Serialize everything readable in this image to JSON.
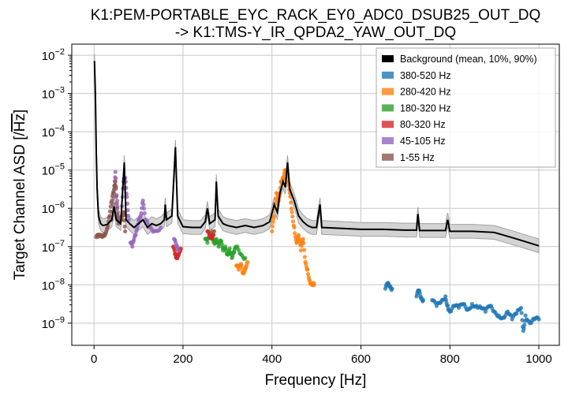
{
  "chart_data": {
    "type": "line",
    "title_line1": "K1:PEM-PORTABLE_EYC_RACK_EY0_ADC0_DSUB25_OUT_DQ",
    "title_line2": "-> K1:TMS-Y_IR_QPDA2_YAW_OUT_DQ",
    "xlabel": "Frequency [Hz]",
    "ylabel_prefix": "Target Channel ASD [/",
    "ylabel_sqrt": "Hz",
    "ylabel_suffix": "]",
    "xlim": [
      -50,
      1046
    ],
    "ylim_log10": [
      -9.58,
      -1.71
    ],
    "yscale": "log",
    "grid": true,
    "legend_placement": "top-right",
    "xticks": [
      0,
      200,
      400,
      600,
      800,
      1000
    ],
    "xtick_labels": [
      "0",
      "200",
      "400",
      "600",
      "800",
      "1000"
    ],
    "yticks_exp": [
      -2,
      -3,
      -4,
      -5,
      -6,
      -7,
      -8,
      -9
    ],
    "background": {
      "label": "Background (mean, 10%, 90%)",
      "color": "#000000",
      "band_color": "#d3d3d3",
      "percentile_spread_dex": 0.18,
      "mean_log10": [
        [
          1,
          -2.15
        ],
        [
          3,
          -3.0
        ],
        [
          5,
          -4.5
        ],
        [
          7,
          -5.5
        ],
        [
          10,
          -6.2
        ],
        [
          15,
          -6.4
        ],
        [
          20,
          -6.45
        ],
        [
          30,
          -6.42
        ],
        [
          40,
          -6.3
        ],
        [
          45,
          -5.95
        ],
        [
          50,
          -6.3
        ],
        [
          60,
          -6.4
        ],
        [
          68,
          -4.8
        ],
        [
          72,
          -6.3
        ],
        [
          80,
          -6.4
        ],
        [
          90,
          -6.5
        ],
        [
          100,
          -6.4
        ],
        [
          110,
          -6.3
        ],
        [
          120,
          -6.5
        ],
        [
          130,
          -6.4
        ],
        [
          140,
          -6.45
        ],
        [
          150,
          -6.4
        ],
        [
          158,
          -6.3
        ],
        [
          160,
          -5.9
        ],
        [
          163,
          -6.3
        ],
        [
          175,
          -6.2
        ],
        [
          183,
          -4.4
        ],
        [
          188,
          -6.2
        ],
        [
          200,
          -6.48
        ],
        [
          220,
          -6.5
        ],
        [
          240,
          -6.5
        ],
        [
          250,
          -6.35
        ],
        [
          255,
          -6.0
        ],
        [
          260,
          -6.4
        ],
        [
          272,
          -6.3
        ],
        [
          275,
          -5.3
        ],
        [
          279,
          -6.2
        ],
        [
          290,
          -6.4
        ],
        [
          300,
          -6.45
        ],
        [
          320,
          -6.5
        ],
        [
          340,
          -6.45
        ],
        [
          360,
          -6.5
        ],
        [
          380,
          -6.45
        ],
        [
          395,
          -6.35
        ],
        [
          405,
          -5.9
        ],
        [
          412,
          -6.1
        ],
        [
          418,
          -5.6
        ],
        [
          425,
          -5.3
        ],
        [
          430,
          -5.45
        ],
        [
          435,
          -4.8
        ],
        [
          440,
          -5.5
        ],
        [
          450,
          -5.8
        ],
        [
          460,
          -6.2
        ],
        [
          470,
          -6.35
        ],
        [
          480,
          -6.45
        ],
        [
          490,
          -6.5
        ],
        [
          500,
          -6.5
        ],
        [
          508,
          -5.9
        ],
        [
          512,
          -6.5
        ],
        [
          550,
          -6.52
        ],
        [
          600,
          -6.55
        ],
        [
          650,
          -6.55
        ],
        [
          700,
          -6.57
        ],
        [
          725,
          -6.57
        ],
        [
          728,
          -6.15
        ],
        [
          732,
          -6.58
        ],
        [
          790,
          -6.58
        ],
        [
          795,
          -6.3
        ],
        [
          800,
          -6.6
        ],
        [
          850,
          -6.6
        ],
        [
          900,
          -6.63
        ],
        [
          950,
          -6.8
        ],
        [
          1000,
          -6.98
        ]
      ]
    },
    "series": [
      {
        "name": "380-520 Hz",
        "color": "#1f77b4",
        "points_log10": [
          [
            [
              655,
              -8.1
            ],
            [
              660,
              -7.98
            ],
            [
              665,
              -8.05
            ],
            [
              670,
              -8.1
            ]
          ],
          [
            [
              725,
              -8.3
            ],
            [
              730,
              -8.15
            ],
            [
              735,
              -8.35
            ],
            [
              740,
              -8.4
            ]
          ],
          [
            [
              760,
              -8.4
            ],
            [
              770,
              -8.55
            ],
            [
              780,
              -8.45
            ],
            [
              790,
              -8.3
            ],
            [
              795,
              -8.55
            ],
            [
              800,
              -8.7
            ],
            [
              810,
              -8.55
            ],
            [
              820,
              -8.6
            ],
            [
              830,
              -8.5
            ],
            [
              840,
              -8.65
            ],
            [
              850,
              -8.5
            ],
            [
              860,
              -8.55
            ],
            [
              870,
              -8.6
            ],
            [
              880,
              -8.7
            ],
            [
              890,
              -8.55
            ],
            [
              900,
              -8.7
            ],
            [
              910,
              -8.8
            ],
            [
              920,
              -8.85
            ],
            [
              930,
              -8.7
            ],
            [
              940,
              -8.9
            ],
            [
              950,
              -8.75
            ],
            [
              960,
              -8.6
            ],
            [
              965,
              -9.2
            ],
            [
              970,
              -8.8
            ],
            [
              980,
              -9.0
            ],
            [
              990,
              -8.9
            ],
            [
              1000,
              -8.9
            ]
          ]
        ]
      },
      {
        "name": "280-420 Hz",
        "color": "#ff7f0e",
        "points_log10": [
          [
            [
              320,
              -7.5
            ],
            [
              325,
              -7.6
            ],
            [
              330,
              -7.45
            ],
            [
              335,
              -7.7
            ],
            [
              340,
              -7.55
            ],
            [
              345,
              -7.4
            ]
          ],
          [
            [
              400,
              -6.6
            ],
            [
              405,
              -6.2
            ],
            [
              410,
              -5.6
            ],
            [
              415,
              -5.8
            ],
            [
              420,
              -5.3
            ],
            [
              425,
              -5.2
            ],
            [
              430,
              -5.0
            ],
            [
              435,
              -5.3
            ],
            [
              440,
              -5.6
            ],
            [
              445,
              -6.1
            ],
            [
              450,
              -6.5
            ],
            [
              455,
              -6.9
            ],
            [
              460,
              -6.7
            ],
            [
              465,
              -7.1
            ],
            [
              470,
              -6.8
            ],
            [
              475,
              -7.4
            ],
            [
              480,
              -7.6
            ],
            [
              485,
              -7.9
            ],
            [
              490,
              -8.0
            ],
            [
              495,
              -8.0
            ]
          ]
        ]
      },
      {
        "name": "180-320 Hz",
        "color": "#2ca02c",
        "points_log10": [
          [
            [
              250,
              -6.8
            ],
            [
              255,
              -6.9
            ],
            [
              260,
              -6.7
            ],
            [
              265,
              -6.6
            ],
            [
              270,
              -6.9
            ],
            [
              275,
              -6.8
            ],
            [
              280,
              -7.0
            ],
            [
              285,
              -6.85
            ],
            [
              290,
              -7.1
            ],
            [
              295,
              -7.0
            ],
            [
              300,
              -7.2
            ],
            [
              305,
              -7.05
            ],
            [
              310,
              -7.3
            ],
            [
              315,
              -7.15
            ],
            [
              320,
              -7.0
            ],
            [
              330,
              -7.2
            ],
            [
              340,
              -7.3
            ]
          ]
        ]
      },
      {
        "name": "80-320 Hz",
        "color": "#d62728",
        "points_log10": [
          [
            [
              178,
              -7.0
            ],
            [
              182,
              -7.2
            ],
            [
              185,
              -7.3
            ],
            [
              188,
              -7.25
            ],
            [
              192,
              -7.1
            ],
            [
              195,
              -7.05
            ]
          ],
          [
            [
              255,
              -6.6
            ],
            [
              260,
              -6.75
            ],
            [
              265,
              -6.8
            ],
            [
              270,
              -6.6
            ]
          ]
        ]
      },
      {
        "name": "45-105  Hz",
        "color": "#9467bd",
        "points_log10": [
          [
            [
              40,
              -6.3
            ],
            [
              45,
              -5.6
            ],
            [
              48,
              -5.05
            ],
            [
              52,
              -5.8
            ],
            [
              55,
              -6.3
            ]
          ],
          [
            [
              62,
              -6.2
            ],
            [
              66,
              -5.3
            ],
            [
              70,
              -5.2
            ],
            [
              74,
              -5.7
            ],
            [
              78,
              -6.3
            ]
          ],
          [
            [
              82,
              -6.9
            ],
            [
              86,
              -7.0
            ],
            [
              90,
              -6.8
            ],
            [
              95,
              -6.6
            ],
            [
              100,
              -6.3
            ],
            [
              105,
              -6.2
            ],
            [
              110,
              -5.8
            ],
            [
              115,
              -6.3
            ],
            [
              125,
              -6.5
            ],
            [
              135,
              -6.6
            ],
            [
              150,
              -6.5
            ]
          ],
          [
            [
              180,
              -6.8
            ],
            [
              185,
              -7.0
            ],
            [
              190,
              -7.1
            ]
          ]
        ]
      },
      {
        "name": "1-55  Hz",
        "color": "#8c564b",
        "points_log10": [
          [
            [
              5,
              -6.75
            ],
            [
              10,
              -6.74
            ],
            [
              15,
              -6.72
            ],
            [
              20,
              -6.7
            ],
            [
              25,
              -6.65
            ],
            [
              30,
              -6.5
            ],
            [
              35,
              -6.2
            ],
            [
              40,
              -5.8
            ],
            [
              45,
              -5.5
            ],
            [
              48,
              -5.3
            ],
            [
              52,
              -6.0
            ],
            [
              55,
              -6.4
            ]
          ],
          [
            [
              62,
              -6.3
            ],
            [
              66,
              -6.1
            ],
            [
              70,
              -6.6
            ]
          ]
        ]
      }
    ]
  }
}
